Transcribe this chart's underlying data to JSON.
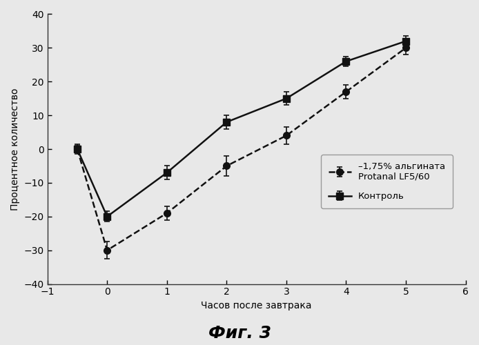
{
  "alginate_x": [
    -0.5,
    0,
    1,
    2,
    3,
    4,
    5
  ],
  "alginate_y": [
    0,
    -30,
    -19,
    -5,
    4,
    17,
    30
  ],
  "alginate_yerr": [
    1.5,
    2.5,
    2.0,
    3.0,
    2.5,
    2.0,
    2.0
  ],
  "control_x": [
    -0.5,
    0,
    1,
    2,
    3,
    4,
    5
  ],
  "control_y": [
    0,
    -20,
    -7,
    8,
    15,
    26,
    32
  ],
  "control_yerr": [
    1.0,
    1.5,
    2.0,
    2.0,
    2.0,
    1.5,
    1.5
  ],
  "alginate_label": "–1,75% альгината\nProtanal LF5/60",
  "control_label": "Контроль",
  "xlabel": "Часов после завтрака",
  "ylabel": "Процентное количество",
  "xlim": [
    -1,
    6
  ],
  "ylim": [
    -40,
    40
  ],
  "xticks": [
    -1,
    0,
    1,
    2,
    3,
    4,
    5,
    6
  ],
  "yticks": [
    -40,
    -30,
    -20,
    -10,
    0,
    10,
    20,
    30,
    40
  ],
  "figure_title": "Фиг. 3",
  "background_color": "#e8e8e8",
  "line_color": "#111111"
}
